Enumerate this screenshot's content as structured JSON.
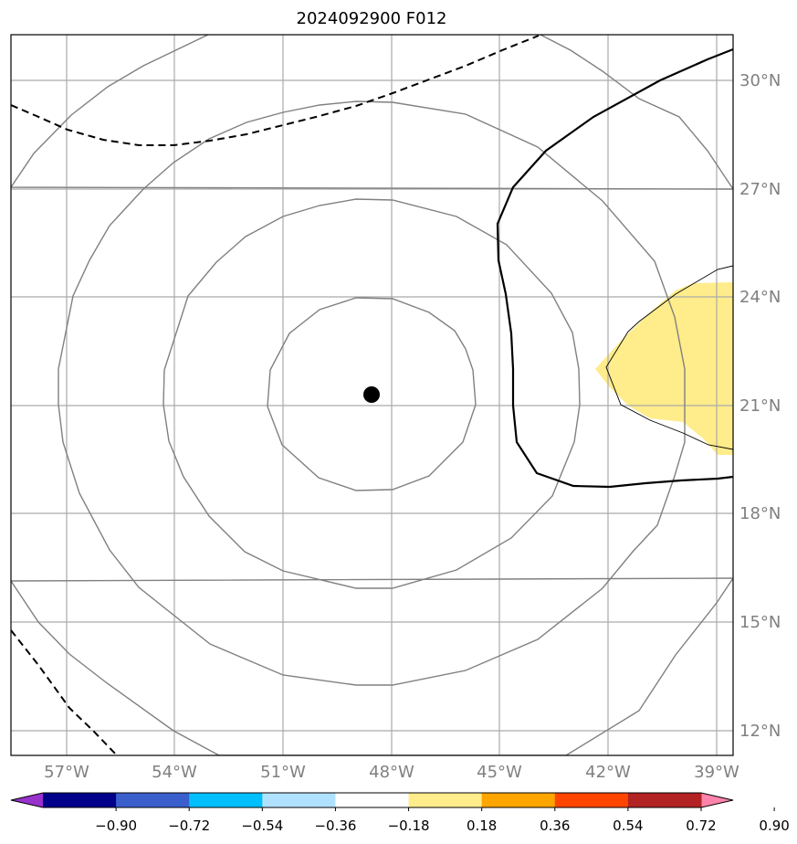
{
  "title": "2024092900 F012",
  "longitude_labels": [
    "57°W",
    "54°W",
    "51°W",
    "48°W",
    "45°W",
    "42°W",
    "39°W"
  ],
  "latitude_labels": [
    "30°N",
    "27°N",
    "24°N",
    "21°N",
    "18°N",
    "15°N",
    "12°N"
  ],
  "colorbar": {
    "tick_labels": [
      "−0.90",
      "−0.72",
      "−0.54",
      "−0.36",
      "−0.18",
      "0.18",
      "0.36",
      "0.54",
      "0.72",
      "0.90"
    ],
    "colors": [
      "#9932cc",
      "#00008b",
      "#3a5fcd",
      "#00bfff",
      "#b0e2ff",
      "#ffffff",
      "#ffec8b",
      "#ffa500",
      "#ff4500",
      "#b22222",
      "#ff83aa"
    ]
  },
  "map": {
    "center_marker_color": "#000000",
    "filled_region_color": "#ffec8b",
    "range_ring_color": "#808080",
    "gridline_color": "#aaaaaa"
  }
}
